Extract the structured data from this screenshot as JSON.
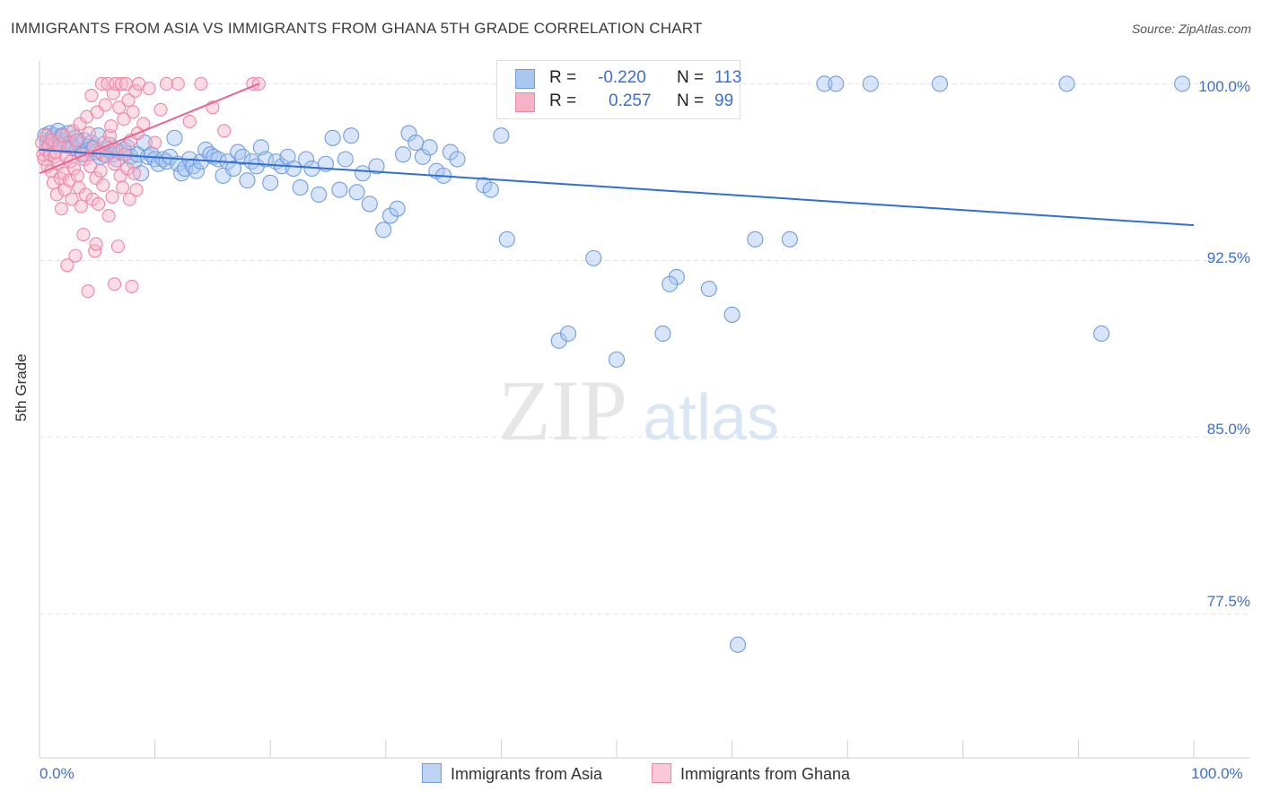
{
  "header": {
    "title": "IMMIGRANTS FROM ASIA VS IMMIGRANTS FROM GHANA 5TH GRADE CORRELATION CHART",
    "source": "Source: ZipAtlas.com"
  },
  "legend": {
    "rows": [
      {
        "r_label": "R =",
        "r_value": "-0.220",
        "n_label": "N =",
        "n_value": "113"
      },
      {
        "r_label": "R =",
        "r_value": "0.257",
        "n_label": "N =",
        "n_value": "99"
      }
    ],
    "bottom": [
      "Immigrants from Asia",
      "Immigrants from Ghana"
    ]
  },
  "watermark": {
    "zip": "ZIP",
    "atlas": "atlas"
  },
  "colors": {
    "asia_fill": "#a9c6ef",
    "asia_stroke": "#6f9de0",
    "asia_line": "#2f6fcf",
    "ghana_fill": "#f6b3c7",
    "ghana_stroke": "#ee86a6",
    "ghana_line": "#e8638f",
    "tick_text": "#3b6fce"
  },
  "chart_data": {
    "type": "scatter",
    "title": "IMMIGRANTS FROM ASIA VS IMMIGRANTS FROM GHANA 5TH GRADE CORRELATION CHART",
    "xlabel": "",
    "ylabel": "5th Grade",
    "xlim": [
      0,
      100
    ],
    "ylim": [
      71.4,
      100.7
    ],
    "x_tick_labels": [
      "0.0%",
      "100.0%"
    ],
    "y_ticks": [
      100.0,
      92.5,
      85.0,
      77.5
    ],
    "y_tick_labels": [
      "100.0%",
      "92.5%",
      "85.0%",
      "77.5%"
    ],
    "grid": "horizontal dashed",
    "legend_position": "top-center",
    "series": [
      {
        "name": "Immigrants from Asia",
        "r": -0.22,
        "n": 113,
        "trend": {
          "x": [
            0.0,
            100.0
          ],
          "y": [
            97.2,
            94.0
          ]
        },
        "points": [
          [
            0.5,
            97.8
          ],
          [
            0.7,
            97.5
          ],
          [
            0.9,
            97.9
          ],
          [
            1.0,
            97.6
          ],
          [
            1.1,
            97.7
          ],
          [
            1.3,
            97.8
          ],
          [
            1.5,
            97.5
          ],
          [
            1.6,
            98.0
          ],
          [
            1.8,
            97.6
          ],
          [
            2.0,
            97.8
          ],
          [
            2.1,
            97.4
          ],
          [
            2.3,
            97.6
          ],
          [
            2.5,
            97.9
          ],
          [
            2.7,
            97.5
          ],
          [
            2.9,
            97.3
          ],
          [
            3.1,
            97.7
          ],
          [
            3.3,
            97.2
          ],
          [
            3.5,
            97.4
          ],
          [
            3.7,
            97.0
          ],
          [
            3.9,
            97.6
          ],
          [
            4.2,
            97.2
          ],
          [
            4.5,
            97.5
          ],
          [
            4.7,
            97.3
          ],
          [
            4.9,
            97.1
          ],
          [
            5.1,
            97.8
          ],
          [
            5.3,
            96.9
          ],
          [
            5.6,
            97.0
          ],
          [
            5.9,
            97.2
          ],
          [
            6.1,
            97.4
          ],
          [
            6.4,
            97.0
          ],
          [
            6.7,
            96.8
          ],
          [
            7.0,
            97.1
          ],
          [
            7.3,
            97.2
          ],
          [
            7.6,
            97.3
          ],
          [
            7.9,
            96.9
          ],
          [
            8.2,
            96.7
          ],
          [
            8.5,
            97.0
          ],
          [
            8.8,
            96.2
          ],
          [
            9.1,
            97.5
          ],
          [
            9.4,
            96.9
          ],
          [
            9.7,
            97.0
          ],
          [
            10.0,
            96.8
          ],
          [
            10.3,
            96.6
          ],
          [
            10.7,
            96.8
          ],
          [
            11.0,
            96.7
          ],
          [
            11.3,
            96.9
          ],
          [
            11.7,
            97.7
          ],
          [
            12.0,
            96.6
          ],
          [
            12.3,
            96.2
          ],
          [
            12.6,
            96.4
          ],
          [
            13.0,
            96.8
          ],
          [
            13.3,
            96.5
          ],
          [
            13.6,
            96.3
          ],
          [
            14.0,
            96.7
          ],
          [
            14.4,
            97.2
          ],
          [
            14.8,
            97.0
          ],
          [
            15.1,
            96.9
          ],
          [
            15.5,
            96.8
          ],
          [
            15.9,
            96.1
          ],
          [
            16.3,
            96.7
          ],
          [
            16.8,
            96.4
          ],
          [
            17.2,
            97.1
          ],
          [
            17.6,
            96.9
          ],
          [
            18.0,
            95.9
          ],
          [
            18.4,
            96.7
          ],
          [
            18.8,
            96.5
          ],
          [
            19.2,
            97.3
          ],
          [
            19.6,
            96.8
          ],
          [
            20.0,
            95.8
          ],
          [
            20.5,
            96.7
          ],
          [
            21.0,
            96.5
          ],
          [
            21.5,
            96.9
          ],
          [
            22.0,
            96.4
          ],
          [
            22.6,
            95.6
          ],
          [
            23.1,
            96.8
          ],
          [
            23.6,
            96.4
          ],
          [
            24.2,
            95.3
          ],
          [
            24.8,
            96.6
          ],
          [
            25.4,
            97.7
          ],
          [
            26.0,
            95.5
          ],
          [
            26.5,
            96.8
          ],
          [
            27.0,
            97.8
          ],
          [
            27.5,
            95.4
          ],
          [
            28.0,
            96.2
          ],
          [
            28.6,
            94.9
          ],
          [
            29.2,
            96.5
          ],
          [
            29.8,
            93.8
          ],
          [
            30.4,
            94.4
          ],
          [
            31.0,
            94.7
          ],
          [
            31.5,
            97.0
          ],
          [
            32.0,
            97.9
          ],
          [
            32.6,
            97.5
          ],
          [
            33.2,
            96.9
          ],
          [
            33.8,
            97.3
          ],
          [
            34.4,
            96.3
          ],
          [
            35.0,
            96.1
          ],
          [
            35.6,
            97.1
          ],
          [
            36.2,
            96.8
          ],
          [
            38.5,
            95.7
          ],
          [
            39.1,
            95.5
          ],
          [
            40.0,
            97.8
          ],
          [
            40.5,
            93.4
          ],
          [
            41.0,
            99.5
          ],
          [
            45.0,
            89.1
          ],
          [
            48.0,
            92.6
          ],
          [
            50.0,
            88.3
          ],
          [
            52.0,
            100.0
          ],
          [
            54.0,
            89.4
          ],
          [
            58.0,
            91.3
          ],
          [
            60.0,
            90.2
          ],
          [
            65.0,
            93.4
          ],
          [
            68.0,
            100.0
          ],
          [
            69.0,
            100.0
          ],
          [
            72.0,
            100.0
          ],
          [
            78.0,
            100.0
          ],
          [
            89.0,
            100.0
          ],
          [
            92.0,
            89.4
          ],
          [
            99.0,
            100.0
          ],
          [
            60.5,
            76.2
          ],
          [
            55.2,
            91.8
          ],
          [
            54.6,
            91.5
          ],
          [
            45.8,
            89.4
          ],
          [
            62.0,
            93.4
          ]
        ]
      },
      {
        "name": "Immigrants from Ghana",
        "r": 0.257,
        "n": 99,
        "trend": {
          "x": [
            0.0,
            19.0
          ],
          "y": [
            96.2,
            100.0
          ]
        },
        "points": [
          [
            0.2,
            97.5
          ],
          [
            0.3,
            97.0
          ],
          [
            0.4,
            96.8
          ],
          [
            0.5,
            97.2
          ],
          [
            0.6,
            97.8
          ],
          [
            0.7,
            96.5
          ],
          [
            0.8,
            97.4
          ],
          [
            0.9,
            97.0
          ],
          [
            1.0,
            96.3
          ],
          [
            1.1,
            97.6
          ],
          [
            1.2,
            95.8
          ],
          [
            1.3,
            96.9
          ],
          [
            1.4,
            97.1
          ],
          [
            1.5,
            95.3
          ],
          [
            1.6,
            96.6
          ],
          [
            1.7,
            97.4
          ],
          [
            1.8,
            96.0
          ],
          [
            1.9,
            94.7
          ],
          [
            2.0,
            97.8
          ],
          [
            2.1,
            96.2
          ],
          [
            2.2,
            95.5
          ],
          [
            2.3,
            96.9
          ],
          [
            2.4,
            92.3
          ],
          [
            2.5,
            97.3
          ],
          [
            2.6,
            95.9
          ],
          [
            2.7,
            96.7
          ],
          [
            2.8,
            95.1
          ],
          [
            2.9,
            98.0
          ],
          [
            3.0,
            96.4
          ],
          [
            3.1,
            92.7
          ],
          [
            3.2,
            97.6
          ],
          [
            3.3,
            96.1
          ],
          [
            3.4,
            95.6
          ],
          [
            3.5,
            98.3
          ],
          [
            3.6,
            94.8
          ],
          [
            3.7,
            97.0
          ],
          [
            3.8,
            93.6
          ],
          [
            3.9,
            96.8
          ],
          [
            4.0,
            95.3
          ],
          [
            4.1,
            98.6
          ],
          [
            4.2,
            91.2
          ],
          [
            4.3,
            97.9
          ],
          [
            4.4,
            96.5
          ],
          [
            4.5,
            99.5
          ],
          [
            4.6,
            95.1
          ],
          [
            4.7,
            97.3
          ],
          [
            4.8,
            92.9
          ],
          [
            4.9,
            96.0
          ],
          [
            5.0,
            98.8
          ],
          [
            5.1,
            94.9
          ],
          [
            5.2,
            97.1
          ],
          [
            5.3,
            96.3
          ],
          [
            5.4,
            100.0
          ],
          [
            5.5,
            95.7
          ],
          [
            5.6,
            97.5
          ],
          [
            5.7,
            99.1
          ],
          [
            5.8,
            96.9
          ],
          [
            5.9,
            100.0
          ],
          [
            6.0,
            94.4
          ],
          [
            6.1,
            97.8
          ],
          [
            6.2,
            98.2
          ],
          [
            6.3,
            95.2
          ],
          [
            6.4,
            99.6
          ],
          [
            6.5,
            96.6
          ],
          [
            6.6,
            100.0
          ],
          [
            6.7,
            97.2
          ],
          [
            6.8,
            93.1
          ],
          [
            6.9,
            99.0
          ],
          [
            7.0,
            96.1
          ],
          [
            7.1,
            100.0
          ],
          [
            7.2,
            95.6
          ],
          [
            7.3,
            98.5
          ],
          [
            7.4,
            97.0
          ],
          [
            7.5,
            100.0
          ],
          [
            7.6,
            96.4
          ],
          [
            7.7,
            99.3
          ],
          [
            7.8,
            95.1
          ],
          [
            7.9,
            97.6
          ],
          [
            8.0,
            91.4
          ],
          [
            8.1,
            98.8
          ],
          [
            8.2,
            96.2
          ],
          [
            8.3,
            99.7
          ],
          [
            8.4,
            95.5
          ],
          [
            8.5,
            97.9
          ],
          [
            8.6,
            100.0
          ],
          [
            9.0,
            98.3
          ],
          [
            9.5,
            99.8
          ],
          [
            10.0,
            97.5
          ],
          [
            10.5,
            98.9
          ],
          [
            11.0,
            100.0
          ],
          [
            12.0,
            100.0
          ],
          [
            13.0,
            98.4
          ],
          [
            14.0,
            100.0
          ],
          [
            15.0,
            99.0
          ],
          [
            16.0,
            98.0
          ],
          [
            18.5,
            100.0
          ],
          [
            19.0,
            100.0
          ],
          [
            6.5,
            91.5
          ],
          [
            4.9,
            93.2
          ]
        ]
      }
    ]
  }
}
